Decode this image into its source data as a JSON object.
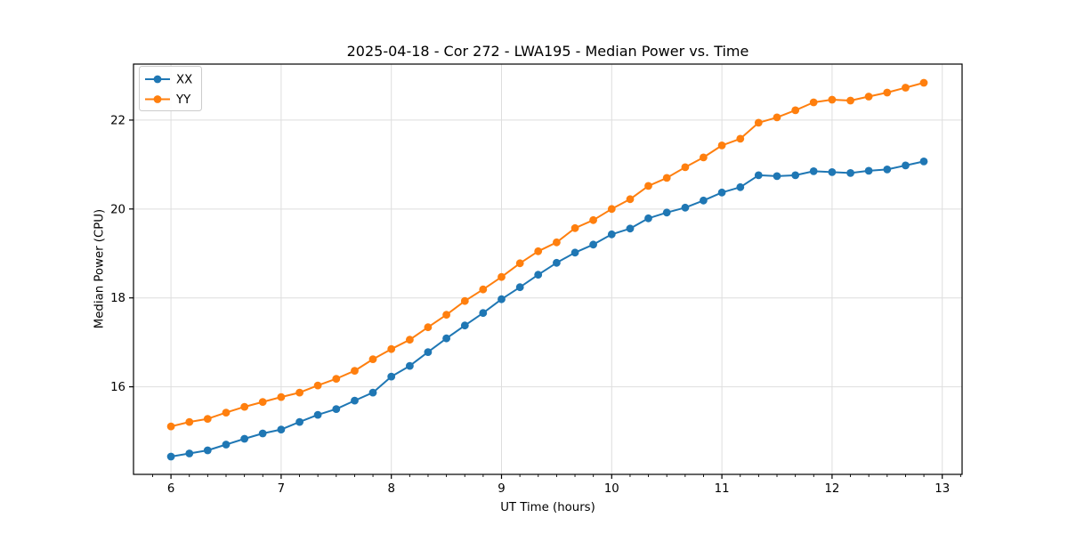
{
  "chart_data": {
    "type": "line",
    "title": "2025-04-18 - Cor 272 - LWA195 - Median Power vs. Time",
    "xlabel": "UT Time (hours)",
    "ylabel": "Median Power (CPU)",
    "xlim": [
      5.66,
      13.18
    ],
    "ylim": [
      14.03,
      23.26
    ],
    "x_major_ticks": [
      6,
      7,
      8,
      9,
      10,
      11,
      12,
      13
    ],
    "x_minor_tick_step": 0.16667,
    "y_major_ticks": [
      16,
      18,
      20,
      22
    ],
    "grid": true,
    "legend": {
      "position": "upper-left",
      "entries": [
        "XX",
        "YY"
      ]
    },
    "x": [
      6.0,
      6.167,
      6.333,
      6.5,
      6.667,
      6.833,
      7.0,
      7.167,
      7.333,
      7.5,
      7.667,
      7.833,
      8.0,
      8.167,
      8.333,
      8.5,
      8.667,
      8.833,
      9.0,
      9.167,
      9.333,
      9.5,
      9.667,
      9.833,
      10.0,
      10.167,
      10.333,
      10.5,
      10.667,
      10.833,
      11.0,
      11.167,
      11.333,
      11.5,
      11.667,
      11.833,
      12.0,
      12.167,
      12.333,
      12.5,
      12.667,
      12.833
    ],
    "series": [
      {
        "name": "XX",
        "color": "#1f77b4",
        "values": [
          14.43,
          14.5,
          14.57,
          14.7,
          14.83,
          14.95,
          15.04,
          15.21,
          15.37,
          15.5,
          15.69,
          15.87,
          16.23,
          16.47,
          16.78,
          17.09,
          17.38,
          17.66,
          17.97,
          18.24,
          18.52,
          18.79,
          19.02,
          19.2,
          19.43,
          19.56,
          19.79,
          19.92,
          20.03,
          20.19,
          20.37,
          20.49,
          20.76,
          20.74,
          20.76,
          20.85,
          20.83,
          20.81,
          20.86,
          20.89,
          20.98,
          21.07
        ]
      },
      {
        "name": "YY",
        "color": "#ff7f0e",
        "values": [
          15.11,
          15.21,
          15.28,
          15.42,
          15.55,
          15.66,
          15.77,
          15.87,
          16.03,
          16.18,
          16.36,
          16.62,
          16.85,
          17.06,
          17.34,
          17.62,
          17.93,
          18.19,
          18.47,
          18.78,
          19.05,
          19.25,
          19.57,
          19.75,
          20.0,
          20.22,
          20.52,
          20.7,
          20.94,
          21.16,
          21.43,
          21.58,
          21.94,
          22.06,
          22.22,
          22.4,
          22.46,
          22.44,
          22.53,
          22.62,
          22.73,
          22.84
        ]
      }
    ]
  },
  "style": {
    "grid_color": "#dedede",
    "spine_color": "#000000",
    "tick_color": "#000000",
    "text_color": "#000000",
    "background": "#ffffff",
    "legend_border_color": "#cccccc",
    "legend_background": "rgba(255,255,255,0.85)"
  }
}
